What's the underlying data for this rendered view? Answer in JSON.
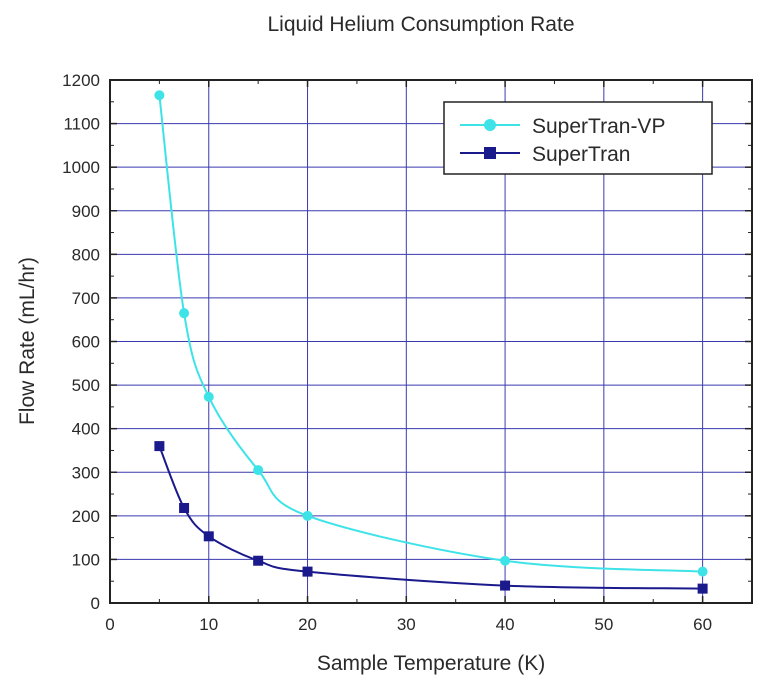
{
  "chart_data": {
    "type": "line",
    "title": "Liquid Helium Consumption Rate",
    "xlabel": "Sample Temperature (K)",
    "ylabel": "Flow Rate (mL/hr)",
    "xlim": [
      0,
      65
    ],
    "ylim": [
      0,
      1200
    ],
    "xticks": [
      0,
      10,
      20,
      30,
      40,
      50,
      60
    ],
    "yticks": [
      0,
      100,
      200,
      300,
      400,
      500,
      600,
      700,
      800,
      900,
      1000,
      1100,
      1200
    ],
    "grid": true,
    "legend_position": "top-right",
    "series": [
      {
        "name": "SuperTran-VP",
        "marker": "circle",
        "color": "#3ee3e8",
        "x": [
          5,
          7.5,
          10,
          15,
          20,
          40,
          60
        ],
        "y": [
          1165,
          665,
          473,
          305,
          200,
          97,
          72
        ]
      },
      {
        "name": "SuperTran",
        "marker": "square",
        "color": "#1a1a8c",
        "x": [
          5,
          7.5,
          10,
          15,
          20,
          40,
          60
        ],
        "y": [
          360,
          218,
          153,
          97,
          72,
          40,
          33
        ]
      }
    ]
  }
}
